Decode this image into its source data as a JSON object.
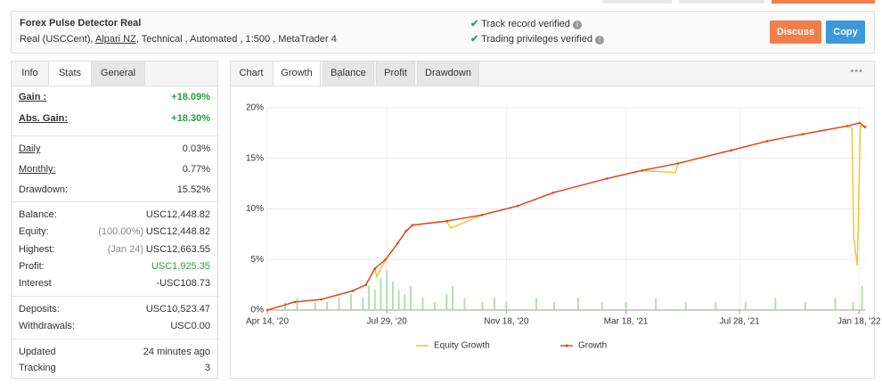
{
  "header": {
    "title": "Forex Pulse Detector Real",
    "account_prefix": "Real (USCCent),",
    "broker": "Alpari NZ",
    "account_suffix": ", Technical , Automated , 1:500 , MetaTrader 4",
    "verified": [
      "Track record verified",
      "Trading privileges verified"
    ],
    "buttons": [
      "Discuss",
      "Copy"
    ]
  },
  "stats_panel": {
    "tabs": [
      "Info",
      "Stats",
      "General"
    ],
    "active_tab": 1,
    "groups": [
      [
        {
          "label": "Gain :",
          "value": "+18.09%",
          "underline": true,
          "highlight": true
        },
        {
          "label": "Abs. Gain:",
          "value": "+18.30%",
          "underline": true,
          "highlight": true
        }
      ],
      [
        {
          "label": "Daily",
          "value": "0.03%",
          "underline": true
        },
        {
          "label": "Monthly:",
          "value": "0.77%",
          "underline": true
        },
        {
          "label": "Drawdown:",
          "value": "15.52%"
        }
      ],
      [
        {
          "label": "Balance:",
          "value": "USC12,448.82"
        },
        {
          "label": "Equity:",
          "note": "(100.00%)",
          "value": "USC12,448.82"
        },
        {
          "label": "Highest:",
          "note": "(Jan 24)",
          "value": "USC12,663.55"
        },
        {
          "label": "Profit:",
          "value": "USC1,925.35",
          "highlight": true
        },
        {
          "label": "Interest",
          "value": "-USC108.73"
        }
      ],
      [
        {
          "label": "Deposits:",
          "value": "USC10,523.47"
        },
        {
          "label": "Withdrawals:",
          "value": "USC0.00"
        }
      ],
      [
        {
          "label": "Updated",
          "value": "24 minutes ago"
        },
        {
          "label": "Tracking",
          "value": "3"
        }
      ]
    ]
  },
  "chart_panel": {
    "label": "Chart",
    "tabs": [
      "Growth",
      "Balance",
      "Profit",
      "Drawdown"
    ],
    "active_tab": 0
  },
  "chart_data": {
    "type": "line",
    "xlim": [
      0,
      100
    ],
    "xticks": [
      {
        "value": 0,
        "label": "Apr 14, '20"
      },
      {
        "value": 20,
        "label": "Jul 29, '20"
      },
      {
        "value": 40,
        "label": "Nov 18, '20"
      },
      {
        "value": 60,
        "label": "Mar 18, '21"
      },
      {
        "value": 79,
        "label": "Jul 28, '21"
      },
      {
        "value": 99,
        "label": "Jan 18, '22"
      }
    ],
    "ylim": [
      0,
      20
    ],
    "yticks": [
      {
        "value": 0,
        "label": "0%"
      },
      {
        "value": 5,
        "label": "5%"
      },
      {
        "value": 10,
        "label": "10%"
      },
      {
        "value": 15,
        "label": "15%"
      },
      {
        "value": 20,
        "label": "20%"
      }
    ],
    "grid": true,
    "legend": "bottom",
    "series": [
      {
        "name": "Equity Growth",
        "color": "#f5c02a",
        "markers": false,
        "x": [
          0,
          4.6,
          9,
          14.3,
          16.5,
          18,
          18.3,
          19.8,
          21.8,
          23.2,
          24.3,
          30,
          30.7,
          35.9,
          41.9,
          47.8,
          56.8,
          62.7,
          68.3,
          68.7,
          77.6,
          83.6,
          89.6,
          97,
          97.8,
          98.1,
          98.7,
          99.2,
          100
        ],
        "values": [
          0,
          0.8,
          1.05,
          1.9,
          2.5,
          4.1,
          3.3,
          5.0,
          6.6,
          7.8,
          8.4,
          8.8,
          8.1,
          9.4,
          10.3,
          11.6,
          13.0,
          13.8,
          13.6,
          14.5,
          15.8,
          16.7,
          17.4,
          18.2,
          18.0,
          7.2,
          4.4,
          18.2,
          18.1
        ]
      },
      {
        "name": "Growth",
        "color": "#e0401c",
        "markers": true,
        "x": [
          0,
          4.6,
          9,
          14.3,
          16.5,
          18,
          19.8,
          21.8,
          23.2,
          24.3,
          30,
          35.9,
          41.9,
          47.8,
          56.8,
          62.7,
          68.7,
          77.6,
          83.6,
          89.6,
          97,
          99.1,
          100
        ],
        "values": [
          0,
          0.8,
          1.05,
          1.9,
          2.5,
          4.1,
          5.0,
          6.6,
          7.8,
          8.4,
          8.8,
          9.4,
          10.3,
          11.6,
          13.0,
          13.8,
          14.5,
          15.8,
          16.7,
          17.4,
          18.2,
          18.5,
          18.1
        ]
      }
    ],
    "volume": {
      "color": "#b5ddb0",
      "y2lim": [
        0,
        50
      ],
      "x": [
        3,
        5,
        8,
        10,
        12,
        14,
        16,
        17,
        18,
        19,
        20,
        21,
        22,
        23,
        24,
        26,
        28,
        30,
        31,
        33,
        36,
        38,
        40,
        45,
        48,
        52,
        56,
        60,
        65,
        70,
        75,
        80,
        85,
        90,
        95,
        98,
        99.5
      ],
      "values": [
        2,
        3,
        2,
        2,
        3,
        4,
        3,
        6,
        5,
        8,
        10,
        7,
        5,
        4,
        6,
        3,
        2,
        4,
        6,
        3,
        2,
        3,
        2,
        3,
        2,
        3,
        2,
        2,
        3,
        2,
        2,
        2,
        3,
        2,
        3,
        2,
        6
      ]
    }
  }
}
